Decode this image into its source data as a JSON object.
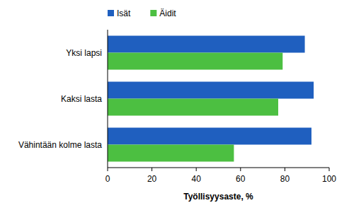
{
  "chart_data": {
    "type": "bar",
    "orientation": "horizontal",
    "categories": [
      "Yksi lapsi",
      "Kaksi lasta",
      "Vähintään kolme lasta"
    ],
    "series": [
      {
        "name": "Isät",
        "color": "#1f5fbf",
        "values": [
          89,
          93,
          92
        ]
      },
      {
        "name": "Äidit",
        "color": "#4cbf41",
        "values": [
          79,
          77,
          57
        ]
      }
    ],
    "x_label": "Työllisyysaste, %",
    "xlim": [
      0,
      100
    ],
    "xticks": [
      0,
      20,
      40,
      60,
      80,
      100
    ],
    "grid": false,
    "legend": "top-left"
  }
}
